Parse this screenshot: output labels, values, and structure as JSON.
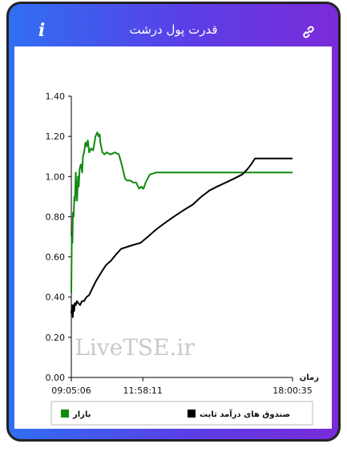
{
  "header": {
    "title": "قدرت پول درشت",
    "info_icon": "info-icon",
    "link_icon": "link-icon"
  },
  "watermark": "LiveTSE.ir",
  "colors": {
    "green": "#118a11",
    "black": "#000000",
    "gradient_start": "#2f6ff2",
    "gradient_end": "#7a2bd8"
  },
  "chart_data": {
    "type": "line",
    "title": "",
    "xlabel": "زمان",
    "ylabel": "",
    "ylim": [
      0,
      1.4
    ],
    "yticks": [
      "0.00",
      "0.20",
      "0.40",
      "0.60",
      "0.80",
      "1.00",
      "1.20",
      "1.40"
    ],
    "xlim": [
      "09:05:06",
      "18:00:35"
    ],
    "xticks": [
      "09:05:06",
      "11:58:11",
      "18:00:35"
    ],
    "grid": false,
    "legend_position": "bottom",
    "series": [
      {
        "name": "بازار",
        "color": "#118a11",
        "x": [
          "09:05:06",
          "09:06:13",
          "09:07:54",
          "09:09:01",
          "09:10:42",
          "09:12:23",
          "09:14:04",
          "09:15:45",
          "09:17:26",
          "09:19:08",
          "09:21:23",
          "09:23:04",
          "09:25:19",
          "09:28:08",
          "09:31:31",
          "09:33:12",
          "09:36:01",
          "09:39:24",
          "09:42:13",
          "09:45:03",
          "09:48:26",
          "09:52:55",
          "09:57:58",
          "10:03:36",
          "10:08:05",
          "10:10:54",
          "10:13:43",
          "10:15:24",
          "10:20:28",
          "10:25:31",
          "10:30:00",
          "10:40:08",
          "10:50:16",
          "11:00:23",
          "11:08:16",
          "11:15:00",
          "11:20:03",
          "11:28:00",
          "11:35:00",
          "11:42:00",
          "11:49:00",
          "11:55:00",
          "11:58:00",
          "12:00:00",
          "12:05:00",
          "12:15:00",
          "12:30:00",
          "12:45:00",
          "13:05:00",
          "13:30:00",
          "14:00:00",
          "14:30:00",
          "15:00:00",
          "15:30:00",
          "16:00:00",
          "16:30:00",
          "17:00:00",
          "17:30:00",
          "18:00:35"
        ],
        "values": [
          0.42,
          0.7,
          0.67,
          0.82,
          0.8,
          0.9,
          0.88,
          1.02,
          0.95,
          0.88,
          1.0,
          0.95,
          1.04,
          1.06,
          1.02,
          1.1,
          1.12,
          1.17,
          1.15,
          1.18,
          1.12,
          1.14,
          1.13,
          1.2,
          1.22,
          1.2,
          1.21,
          1.17,
          1.12,
          1.11,
          1.12,
          1.11,
          1.12,
          1.11,
          1.05,
          0.99,
          0.98,
          0.98,
          0.97,
          0.97,
          0.94,
          0.95,
          0.94,
          0.94,
          0.97,
          1.01,
          1.02,
          1.02,
          1.02,
          1.02,
          1.02,
          1.02,
          1.02,
          1.02,
          1.02,
          1.02,
          1.02,
          1.02,
          1.02
        ]
      },
      {
        "name": "صندوق های درآمد ثابت",
        "color": "#000000",
        "x": [
          "09:05:06",
          "09:06:48",
          "09:08:31",
          "09:10:13",
          "09:11:55",
          "09:13:37",
          "09:16:02",
          "09:18:27",
          "09:21:48",
          "09:26:24",
          "09:31:00",
          "09:35:43",
          "09:41:42",
          "09:48:26",
          "09:55:11",
          "10:04:55",
          "10:16:46",
          "10:29:16",
          "10:40:34",
          "10:52:24",
          "11:05:48",
          "11:20:28",
          "11:35:51",
          "11:52:54",
          "12:10:12",
          "12:32:33",
          "12:52:21",
          "13:12:58",
          "13:34:56",
          "13:58:45",
          "14:20:05",
          "14:39:07",
          "14:58:01",
          "15:18:58",
          "15:39:22",
          "15:58:26",
          "16:03:51",
          "16:12:46",
          "16:20:18",
          "16:30:00",
          "17:00:00",
          "17:30:00",
          "18:00:35"
        ],
        "values": [
          0.32,
          0.36,
          0.3,
          0.36,
          0.33,
          0.37,
          0.36,
          0.38,
          0.37,
          0.36,
          0.38,
          0.38,
          0.4,
          0.41,
          0.44,
          0.48,
          0.52,
          0.56,
          0.58,
          0.61,
          0.64,
          0.65,
          0.66,
          0.67,
          0.7,
          0.74,
          0.77,
          0.8,
          0.83,
          0.86,
          0.9,
          0.93,
          0.95,
          0.97,
          0.99,
          1.01,
          1.02,
          1.04,
          1.06,
          1.09,
          1.09,
          1.09,
          1.09
        ]
      }
    ]
  }
}
